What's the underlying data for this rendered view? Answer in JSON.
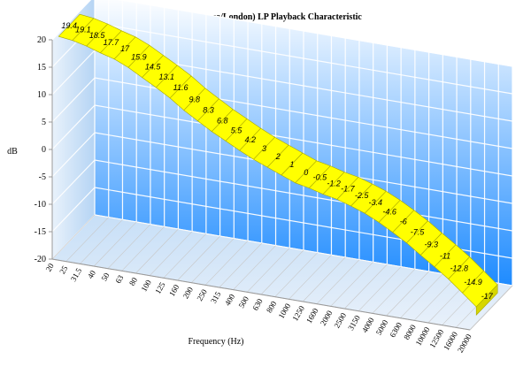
{
  "chart_data": {
    "type": "area",
    "title": "FFRR (Decca/London) LP Playback Characteristic",
    "xlabel": "Frequency (Hz)",
    "ylabel": "dB",
    "ylim": [
      -20,
      20
    ],
    "yticks": [
      20,
      15,
      10,
      5,
      0,
      -5,
      -10,
      -15,
      -20
    ],
    "grid": true,
    "three_d": true,
    "colors": {
      "series_fill": "#ffff00",
      "series_edge": "#a8a800",
      "back_wall_top": "#ffffff",
      "back_wall_bottom": "#1e8bff",
      "grid_line": "#ffffff",
      "axis_line": "#999999",
      "text": "#000000"
    },
    "categories": [
      "20",
      "25",
      "31.5",
      "40",
      "50",
      "63",
      "80",
      "100",
      "125",
      "160",
      "200",
      "250",
      "315",
      "400",
      "500",
      "630",
      "800",
      "1000",
      "1250",
      "1600",
      "2000",
      "2500",
      "3150",
      "4000",
      "5000",
      "6300",
      "8000",
      "10000",
      "12500",
      "16000",
      "20000"
    ],
    "series": [
      {
        "values": [
          19.4,
          19.1,
          18.5,
          17.7,
          17,
          15.9,
          14.5,
          13.1,
          11.6,
          9.8,
          8.3,
          6.8,
          5.5,
          4.2,
          3,
          2,
          1,
          0,
          -0.5,
          -1.2,
          -1.7,
          -2.5,
          -3.4,
          -4.6,
          -6,
          -7.5,
          -9.3,
          -11,
          -12.8,
          -14.9,
          -17
        ]
      }
    ]
  }
}
